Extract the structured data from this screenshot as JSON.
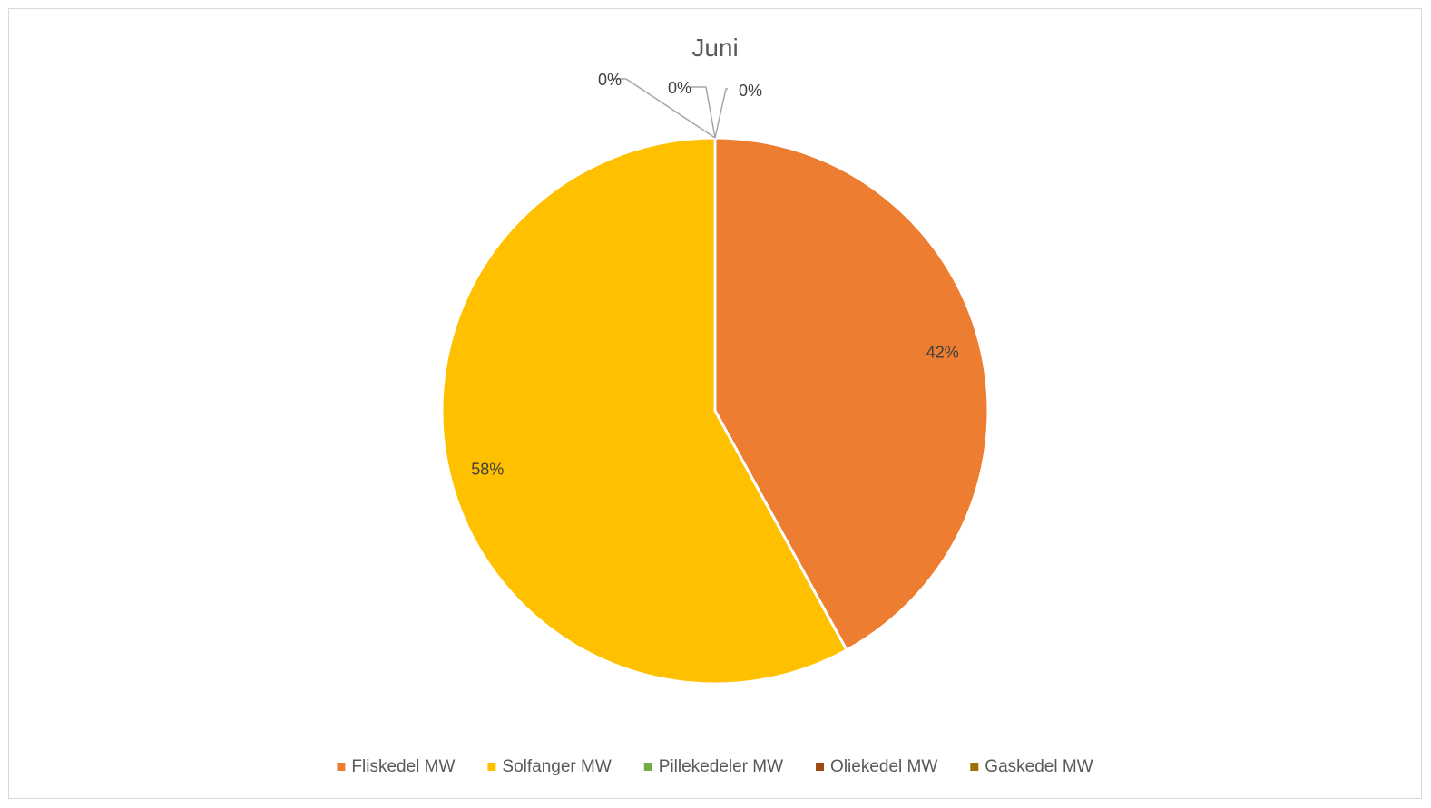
{
  "chart_data": {
    "type": "pie",
    "title": "Juni",
    "categories": [
      "Fliskedel MW",
      "Solfanger MW",
      "Pillekedeler MW",
      "Oliekedel MW",
      "Gaskedel MW"
    ],
    "values": [
      42,
      58,
      0,
      0,
      0
    ],
    "data_labels": [
      "42%",
      "58%",
      "0%",
      "0%",
      "0%"
    ],
    "colors": [
      "#ED7D31",
      "#FFC000",
      "#70AD47",
      "#9E480E",
      "#997300"
    ],
    "legend_position": "bottom",
    "start_angle_deg": 0,
    "direction": "clockwise"
  }
}
